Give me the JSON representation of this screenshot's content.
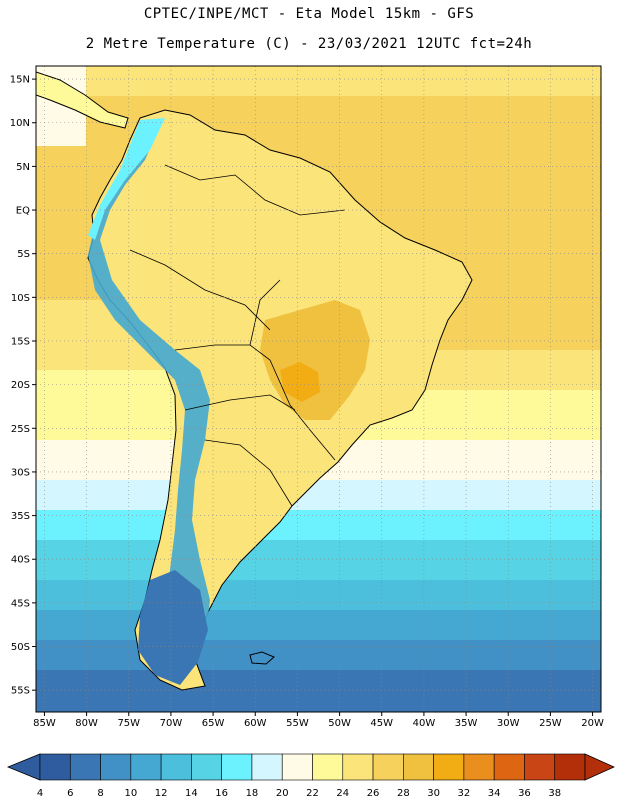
{
  "header": {
    "line1": "CPTEC/INPE/MCT -  Eta Model 15km - GFS",
    "line2": "2 Metre Temperature (C) - 23/03/2021 12UTC fct=24h"
  },
  "map": {
    "lon_range": [
      -86,
      -19
    ],
    "lat_range": [
      -57.5,
      16.5
    ],
    "lon_ticks": [
      {
        "v": -85,
        "t": "85W"
      },
      {
        "v": -80,
        "t": "80W"
      },
      {
        "v": -75,
        "t": "75W"
      },
      {
        "v": -70,
        "t": "70W"
      },
      {
        "v": -65,
        "t": "65W"
      },
      {
        "v": -60,
        "t": "60W"
      },
      {
        "v": -55,
        "t": "55W"
      },
      {
        "v": -50,
        "t": "50W"
      },
      {
        "v": -45,
        "t": "45W"
      },
      {
        "v": -40,
        "t": "40W"
      },
      {
        "v": -35,
        "t": "35W"
      },
      {
        "v": -30,
        "t": "30W"
      },
      {
        "v": -25,
        "t": "25W"
      },
      {
        "v": -20,
        "t": "20W"
      }
    ],
    "lat_ticks": [
      {
        "v": 15,
        "t": "15N"
      },
      {
        "v": 10,
        "t": "10N"
      },
      {
        "v": 5,
        "t": "5N"
      },
      {
        "v": 0,
        "t": "EQ"
      },
      {
        "v": -5,
        "t": "5S"
      },
      {
        "v": -10,
        "t": "10S"
      },
      {
        "v": -15,
        "t": "15S"
      },
      {
        "v": -20,
        "t": "20S"
      },
      {
        "v": -25,
        "t": "25S"
      },
      {
        "v": -30,
        "t": "30S"
      },
      {
        "v": -35,
        "t": "35S"
      },
      {
        "v": -40,
        "t": "40S"
      },
      {
        "v": -45,
        "t": "45S"
      },
      {
        "v": -50,
        "t": "50S"
      },
      {
        "v": -55,
        "t": "55S"
      }
    ]
  },
  "colorbar": {
    "labels": [
      "4",
      "6",
      "8",
      "10",
      "12",
      "14",
      "16",
      "18",
      "20",
      "22",
      "24",
      "26",
      "28",
      "30",
      "32",
      "34",
      "36",
      "38"
    ],
    "colors": [
      "#2f5c9e",
      "#3b76b4",
      "#4191c6",
      "#44a8d2",
      "#4cbfdd",
      "#56d4e6",
      "#6cf2ff",
      "#d3f6ff",
      "#fffbe6",
      "#fffa99",
      "#fbe47a",
      "#f6d25c",
      "#f0c13e",
      "#f2ad14",
      "#ea8e1e",
      "#de6612",
      "#c94515",
      "#b32f0a"
    ]
  }
}
